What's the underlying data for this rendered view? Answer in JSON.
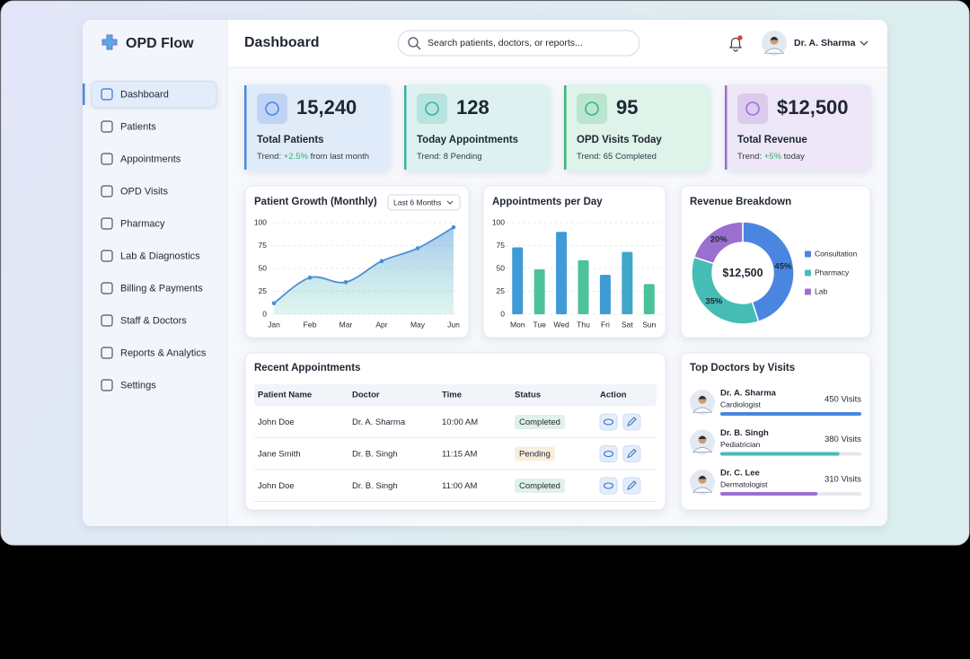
{
  "sidebar": {
    "brand": "OPD Flow",
    "nav": [
      "Dashboard",
      "Patients",
      "Appointments",
      "OPD Visits",
      "Pharmacy",
      "Lab & Diagnostics",
      "Billing & Payments",
      "Staff & Doctors",
      "Reports & Analytics",
      "Settings"
    ]
  },
  "header": {
    "title": "Dashboard",
    "search_placeholder": "Search patients, doctors, or reports...",
    "user_name": "Dr. A. Sharma"
  },
  "stats": [
    {
      "value": "15,240",
      "label": "Total Patients",
      "trend": [
        "Trend: ",
        "+2.5%",
        " from last month"
      ],
      "color": "#4a86e0"
    },
    {
      "value": "128",
      "label": "Today Appointments",
      "trend": [
        "Trend: 8 Pending"
      ],
      "color": "#37b2a6"
    },
    {
      "value": "95",
      "label": "OPD Visits Today",
      "trend": [
        "Trend: 65 Completed"
      ],
      "color": "#3bb57a"
    },
    {
      "value": "$12,500",
      "label": "Total Revenue",
      "trend": [
        "Trend: ",
        "+5%",
        " today"
      ],
      "color": "#9b6fd0"
    }
  ],
  "chart_data": [
    {
      "type": "line",
      "title": "Patient Growth (Monthly)",
      "filter": "Last 6 Months",
      "categories": [
        "Jan",
        "Feb",
        "Mar",
        "Apr",
        "May",
        "Jun"
      ],
      "values": [
        12,
        40,
        35,
        58,
        72,
        95
      ],
      "color": "#4a8fd6",
      "ylim": [
        0,
        100
      ],
      "yticks": [
        0,
        25,
        50,
        75,
        100
      ],
      "grid": true
    },
    {
      "type": "bar",
      "title": "Appointments per Day",
      "categories": [
        "Mon",
        "Tue",
        "Wed",
        "Thu",
        "Fri",
        "Sat",
        "Sun"
      ],
      "values": [
        73,
        49,
        90,
        59,
        43,
        68,
        33
      ],
      "colors": [
        "#3f9ad6",
        "#4cc29a",
        "#3f9ad6",
        "#4cc29a",
        "#3f9ad6",
        "#3fa7c8",
        "#4cc29a"
      ],
      "ylim": [
        0,
        100
      ],
      "yticks": [
        0,
        25,
        50,
        75,
        100
      ],
      "grid": true
    },
    {
      "type": "pie",
      "title": "Revenue Breakdown",
      "center_label": "$12,500",
      "categories": [
        "Consultation",
        "Pharmacy",
        "Lab"
      ],
      "values": [
        45,
        35,
        20
      ],
      "value_labels": [
        "45%",
        "35%",
        "20%"
      ],
      "colors": [
        "#4a86e0",
        "#45bdb5",
        "#9b6fd0"
      ],
      "legend": "right"
    }
  ],
  "recent_appointments": {
    "title": "Recent Appointments",
    "columns": [
      "Patient Name",
      "Doctor",
      "Time",
      "Status",
      "Action"
    ],
    "rows": [
      [
        "John Doe",
        "Dr. A. Sharma",
        "10:00 AM",
        "Completed"
      ],
      [
        "Jane Smith",
        "Dr. B. Singh",
        "11:15 AM",
        "Pending"
      ],
      [
        "John Doe",
        "Dr. B. Singh",
        "11:00 AM",
        "Completed"
      ]
    ],
    "status_colors": [
      "#2e9e5b",
      "#d98a1f",
      "#2e9e5b"
    ]
  },
  "top_doctors": {
    "title": "Top Doctors by Visits",
    "doctors": [
      {
        "name": "Dr. A. Sharma",
        "specialty": "Cardiologist",
        "visits": 450,
        "visits_label": "450 Visits",
        "color": "#4a86e0"
      },
      {
        "name": "Dr. B. Singh",
        "specialty": "Pediatrician",
        "visits": 380,
        "visits_label": "380 Visits",
        "color": "#45bdb5"
      },
      {
        "name": "Dr. C. Lee",
        "specialty": "Dermatologist",
        "visits": 310,
        "visits_label": "310 Visits",
        "color": "#9b6fd0"
      }
    ]
  }
}
